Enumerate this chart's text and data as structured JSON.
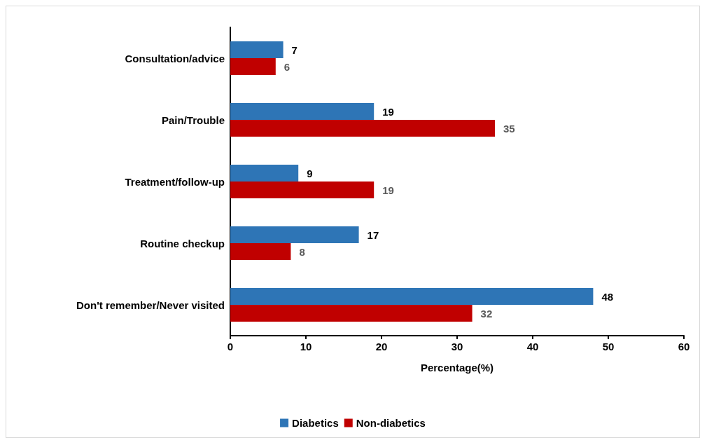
{
  "chart_data": {
    "type": "bar",
    "orientation": "horizontal",
    "xlabel": "Percentage(%)",
    "categories": [
      "Consultation/advice",
      "Pain/Trouble",
      "Treatment/follow-up",
      "Routine checkup",
      "Don't remember/Never visited"
    ],
    "series": [
      {
        "name": "Diabetics",
        "color": "#2e75b6",
        "values": [
          7,
          19,
          9,
          17,
          48
        ]
      },
      {
        "name": "Non-diabetics",
        "color": "#c00000",
        "values": [
          6,
          35,
          19,
          8,
          32
        ]
      }
    ],
    "xlim": [
      0,
      60
    ],
    "xticks": [
      0,
      10,
      20,
      30,
      40,
      50,
      60
    ],
    "data_labels": true,
    "grid": false,
    "legend": "bottom"
  }
}
